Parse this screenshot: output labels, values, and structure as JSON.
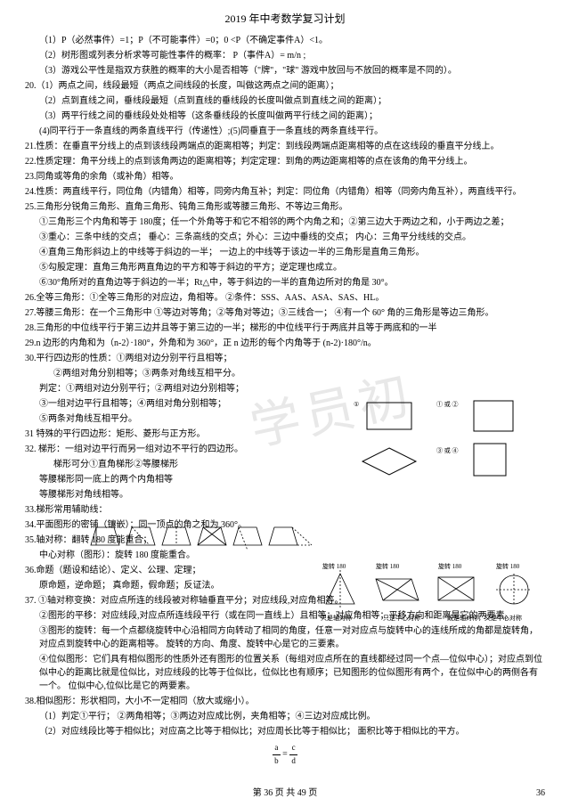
{
  "title": "2019 年中考数学复习计划",
  "lines": [
    {
      "cls": "indent1",
      "t": "（1）P（必然事件）=1；P（不可能事件）=0；0 <P（不确定事件A）<1。"
    },
    {
      "cls": "indent1",
      "t": "（2）树形图或列表分析求等可能性事件的概率：  P（事件A）= m/n  ;"
    },
    {
      "cls": "indent1",
      "t": "（3）游戏公平性是指双方获胜的概率的大小是否相等（\"牌\"，\"球\" 游戏中放回与不放回的概率是不同的）。"
    },
    {
      "cls": "",
      "t": "20.（1）两点之间，线段最短（两点之间线段的长度，叫做这两点之间的距离）；"
    },
    {
      "cls": "indent1",
      "t": "（2）点到直线之间，垂线段最短（点到直线的垂线段的长度叫做点到直线之间的距离）；"
    },
    {
      "cls": "indent1",
      "t": "（3）两平行线之间的垂线段处处相等（这条垂线段的长度叫做两平行线之间的距离）；"
    },
    {
      "cls": "indent1",
      "t": "(4)同平行于一条直线的两条直线平行（传递性）;(5)同垂直于一条直线的两条直线平行。"
    },
    {
      "cls": "",
      "t": "21.性质：在垂直平分线上的点到该线段两端点的距离相等；判定：到线段两端点距离相等的点在这线段的垂直平分线上。"
    },
    {
      "cls": "",
      "t": "22.性质定理：角平分线上的点到该角两边的距离相等；判定定理：到角的两边距离相等的点在该角的角平分线上。"
    },
    {
      "cls": "",
      "t": "23.同角或等角的余角（或补角）相等。"
    },
    {
      "cls": "",
      "t": "24.性质：两直线平行，同位角（内错角）相等，同旁内角互补；判定：同位角（内错角）相等（同旁内角互补），两直线平行。"
    },
    {
      "cls": "",
      "t": "25.三角形分锐角三角形、直角三角形、钝角三角形或等腰三角形、不等边三角形。"
    },
    {
      "cls": "indent1",
      "t": "①三角形三个内角和等于 180度；任一个外角等于和它不相邻的两个内角之和；②第三边大于两边之和，小于两边之差；"
    },
    {
      "cls": "indent1",
      "t": "③重心：三条中线的交点；  垂心：三条高线的交点；外心：三边中垂线的交点；  内心：三角平分线线的交点。"
    },
    {
      "cls": "indent1",
      "t": "④直角三角形斜边上的中线等于斜边的一半；  一边上的中线等于该边一半的三角形是直角三角形。"
    },
    {
      "cls": "indent1",
      "t": "⑤勾股定理：直角三角形两直角边的平方和等于斜边的平方；逆定理也成立。"
    },
    {
      "cls": "indent1",
      "t": "⑥30°角所对的直角边等于斜边的一半；Rt△中，等于斜边的一半的直角边所对的角是 30°。"
    },
    {
      "cls": "",
      "t": "26.全等三角形：①全等三角形的对应边，角相等。  ②条件：SSS、AAS、ASA、SAS、HL。"
    },
    {
      "cls": "",
      "t": "27.等腰三角形：在一个三角形中 ①等边对等角；②等角对等边；③三线合一；  ④有一个 60° 角的三角形是等边三角形。"
    },
    {
      "cls": "",
      "t": "28.三角形的中位线平行于第三边并且等于第三边的一半；梯形的中位线平行于两底并且等于两底和的一半"
    },
    {
      "cls": "",
      "t": "29.n 边形的内角和为（n-2）·180°，外角和为 360°，正 n 边形的每个内角等于 (n-2)·180°/n。"
    },
    {
      "cls": "",
      "t": "30.平行四边形的性质：①两组对边分别平行且相等；"
    },
    {
      "cls": "indent2",
      "t": "②两组对角分别相等；③两条对角线互相平分。"
    },
    {
      "cls": "indent1",
      "t": "判定：①两组对边分别平行；②两组对边分别相等；"
    },
    {
      "cls": "indent1",
      "t": "③一组对边平行且相等；④两组对角分别相等；"
    },
    {
      "cls": "indent1",
      "t": "⑤两条对角线互相平分。"
    },
    {
      "cls": "",
      "t": "31 特殊的平行四边形：矩形、菱形与正方形。"
    },
    {
      "cls": "",
      "t": "32. 梯形：一组对边平行而另一组对边不平行的四边形。"
    },
    {
      "cls": "indent2",
      "t": "梯形可分①直角梯形②等腰梯形"
    },
    {
      "cls": "indent1",
      "t": "等腰梯形同一底上的两个内角相等"
    },
    {
      "cls": "indent1",
      "t": "等腰梯形对角线相等。"
    },
    {
      "cls": "",
      "t": "33.梯形常用辅助线："
    },
    {
      "cls": "",
      "t": "34.平面图形的密铺（镶嵌）：同一顶点的角之和为 360°。"
    },
    {
      "cls": "",
      "t": "35.轴对称：翻转 180 度能重合；"
    },
    {
      "cls": "indent1",
      "t": "中心对称（图形）：旋转 180 度能重合。"
    },
    {
      "cls": "",
      "t": "36.命题（题设和结论）、定义、公理、定理；"
    },
    {
      "cls": "indent1",
      "t": "原命题，逆命题；  真命题，假命题；反证法。"
    },
    {
      "cls": "",
      "t": "37. ①轴对称变换：对应点所连的线段被对称轴垂直平分；对应线段,对应角相等。"
    },
    {
      "cls": "indent1",
      "t": "②图形的平移：对应线段,对应点所连线段平行（或在同一直线上）且相等；对应角相等；平移方向和距离是它的两要素。"
    },
    {
      "cls": "indent1",
      "t": "③图形的旋转：每一个点都绕旋转中心沿相同方向转动了相同的角度，任意一对对应点与旋转中心的连线所成的角都是旋转角，对应点到旋转中心的距离相等。 旋转的方向、角度、旋转中心是它的三要素。"
    },
    {
      "cls": "indent1",
      "t": "④位似图形：它们具有相似图形的性质外还有图形的位置关系（每组对应点所在的直线都经过同一个点—位似中心）；对应点到位似中心的距离比就是位似比，对应线段的比等于位似比，位似比也有顺序；已知图形的位似图形有两个，在位似中心的两侧各有一个。 位似中心,位似比是它的两要素。"
    },
    {
      "cls": "",
      "t": "38.相似图形：形状相同，大小不一定相同（放大或缩小）。"
    },
    {
      "cls": "indent1",
      "t": "（1）判定①平行；  ②两角相等；③两边对应成比例，夹角相等；④三边对应成比例。"
    },
    {
      "cls": "indent1",
      "t": "（2）对应线段比等于相似比；对应高之比等于相似比；对应周长比等于相似比；  面积比等于相似比的平方。"
    }
  ],
  "diag_rect_captions": {
    "top_left": "①一组邻角相等",
    "top_mid": "①有一个角是直角 ②对角线互相垂直 ③对角线相等",
    "square_lbl": "① 或 ②",
    "rhomb_lbl": "③ 或 ④",
    "parallelogram": "平行四边形 + （一个特殊条件）→",
    "rect_or_rhomb": "矩形 或 菱形",
    "rect_plus": "矩形 + （一个特殊条件）→ 正方形",
    "rhomb_plus": "菱形 + （一个特殊条件）→ 正方形",
    "parallel_two": "平行四边形 + （两个特殊条件）→ 正方形"
  },
  "diag_sym_captions": {
    "rot1": "旋转 180",
    "rot2": "旋转 180",
    "rot3": "旋转 180",
    "rot4": "旋转 180",
    "cap1": "只是轴对称",
    "cap2": "只是中心对称",
    "cap3": "既是轴对称，又是中心对称"
  },
  "formula": {
    "a": "a",
    "b": "b",
    "c": "c",
    "d": "d"
  },
  "footer": "第 36 页 共 49 页",
  "page_num": "36"
}
